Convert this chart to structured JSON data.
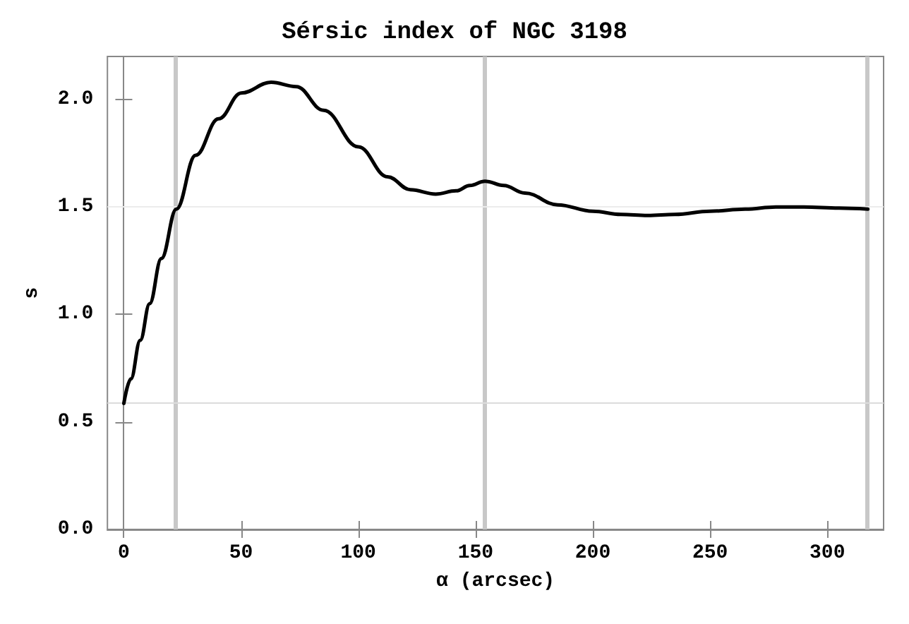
{
  "chart_data": {
    "type": "line",
    "title": "Sérsic index of NGC 3198",
    "xlabel": "α (arcsec)",
    "ylabel": "s",
    "x": [
      0,
      3,
      7,
      11,
      16,
      22.4,
      30.6,
      40.4,
      50.1,
      62.8,
      73.5,
      85.2,
      100,
      112.5,
      122.2,
      133,
      141.7,
      147.6,
      154,
      162,
      171,
      185,
      200,
      212,
      223.4,
      235,
      250,
      265,
      278,
      290,
      305,
      317.3
    ],
    "series": [
      {
        "color": "#000000",
        "values": [
          0.586,
          0.7,
          0.88,
          1.05,
          1.26,
          1.49,
          1.74,
          1.91,
          2.03,
          2.08,
          2.06,
          1.95,
          1.78,
          1.64,
          1.58,
          1.56,
          1.575,
          1.6,
          1.62,
          1.6,
          1.565,
          1.51,
          1.48,
          1.465,
          1.46,
          1.465,
          1.48,
          1.49,
          1.5,
          1.5,
          1.495,
          1.49
        ]
      }
    ],
    "xlim": [
      -7,
      324
    ],
    "xticks": [
      0,
      50,
      100,
      150,
      200,
      250,
      300
    ],
    "ylim": [
      0,
      2.2
    ],
    "yticks": [
      {
        "value": 0,
        "label": "0.0"
      },
      {
        "value": 0.5,
        "label": "0.5"
      },
      {
        "value": 1,
        "label": "1.0"
      },
      {
        "value": 1.5,
        "label": "1.5"
      },
      {
        "value": 2,
        "label": "2.0"
      }
    ],
    "ref_lines": [
      {
        "axis": "x",
        "value": 22,
        "color": "#c8c8c8"
      },
      {
        "axis": "x",
        "value": 154,
        "color": "#c8c8c8"
      },
      {
        "axis": "x",
        "value": 317,
        "color": "#c8c8c8"
      },
      {
        "axis": "y",
        "value": 1.5,
        "color": "#ececec"
      },
      {
        "axis": "y",
        "value": 0.586,
        "color": "#dcdcdc"
      }
    ],
    "grid": false,
    "marker": "none",
    "line_style": "solid"
  }
}
